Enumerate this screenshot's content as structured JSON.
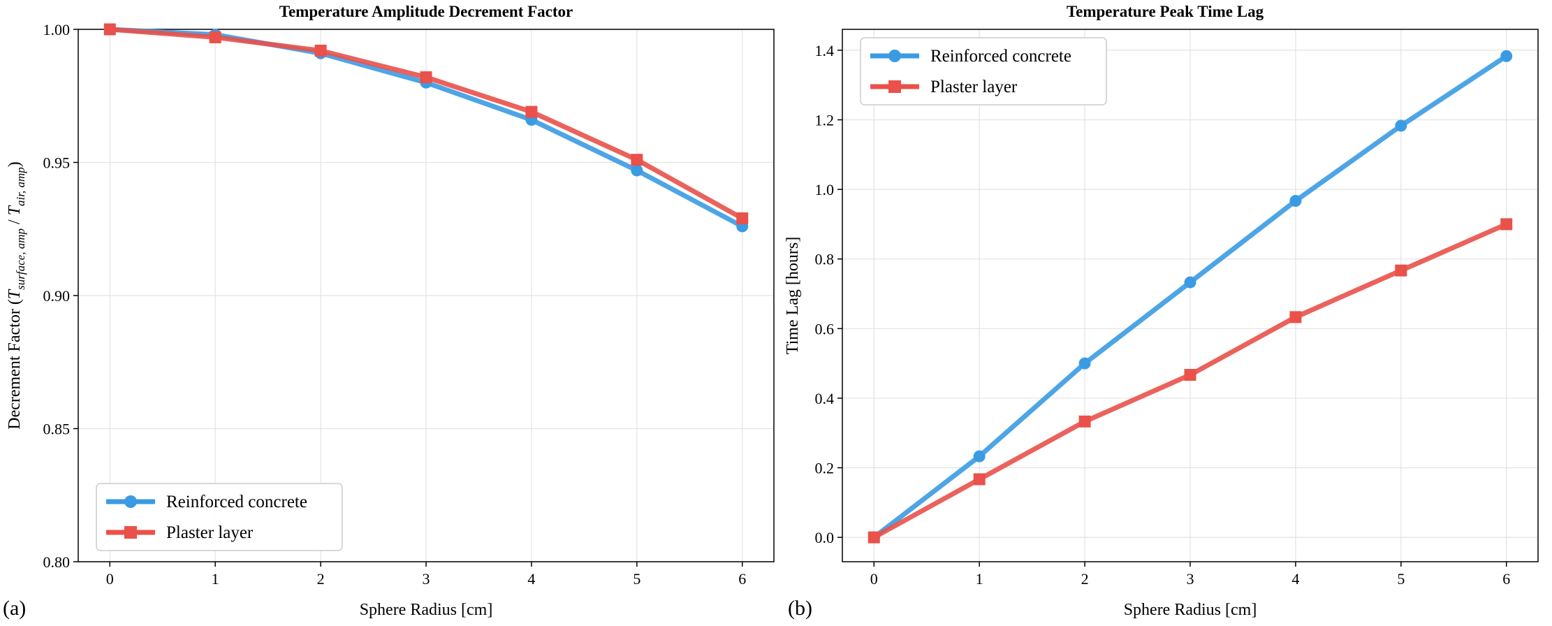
{
  "chart_data": [
    {
      "type": "line",
      "panel_label": "(a)",
      "title": "Temperature Amplitude Decrement Factor",
      "xlabel": "Sphere Radius [cm]",
      "ylabel_prefix": "Decrement Factor (",
      "ylabel_t1": "T",
      "ylabel_s1": "surface, amp",
      "ylabel_mid": " / ",
      "ylabel_t2": "T",
      "ylabel_s2": "air, amp",
      "ylabel_suffix": ")",
      "x": [
        0,
        1,
        2,
        3,
        4,
        5,
        6
      ],
      "xlim": [
        -0.3,
        6.3
      ],
      "ylim": [
        0.8,
        1.0
      ],
      "xticks": [
        "0",
        "1",
        "2",
        "3",
        "4",
        "5",
        "6"
      ],
      "yticks": [
        "0.80",
        "0.85",
        "0.90",
        "0.95",
        "1.00"
      ],
      "grid": true,
      "legend_position": "bottom-left",
      "series": [
        {
          "name": "Reinforced concrete",
          "color": "#3a9be3",
          "marker": "circle",
          "values": [
            1.0,
            0.998,
            0.991,
            0.98,
            0.966,
            0.947,
            0.926
          ]
        },
        {
          "name": "Plaster layer",
          "color": "#e9514a",
          "marker": "square",
          "values": [
            1.0,
            0.997,
            0.992,
            0.982,
            0.969,
            0.951,
            0.929
          ]
        }
      ]
    },
    {
      "type": "line",
      "panel_label": "(b)",
      "title": "Temperature Peak Time Lag",
      "xlabel": "Sphere Radius [cm]",
      "ylabel": "Time Lag [hours]",
      "x": [
        0,
        1,
        2,
        3,
        4,
        5,
        6
      ],
      "xlim": [
        -0.3,
        6.3
      ],
      "ylim": [
        -0.07,
        1.46
      ],
      "xticks": [
        "0",
        "1",
        "2",
        "3",
        "4",
        "5",
        "6"
      ],
      "yticks": [
        "0.0",
        "0.2",
        "0.4",
        "0.6",
        "0.8",
        "1.0",
        "1.2",
        "1.4"
      ],
      "grid": true,
      "legend_position": "top-left",
      "series": [
        {
          "name": "Reinforced concrete",
          "color": "#3a9be3",
          "marker": "circle",
          "values": [
            0.0,
            0.233,
            0.5,
            0.733,
            0.967,
            1.183,
            1.383
          ]
        },
        {
          "name": "Plaster layer",
          "color": "#e9514a",
          "marker": "square",
          "values": [
            0.0,
            0.167,
            0.333,
            0.467,
            0.633,
            0.767,
            0.9
          ]
        }
      ]
    }
  ]
}
